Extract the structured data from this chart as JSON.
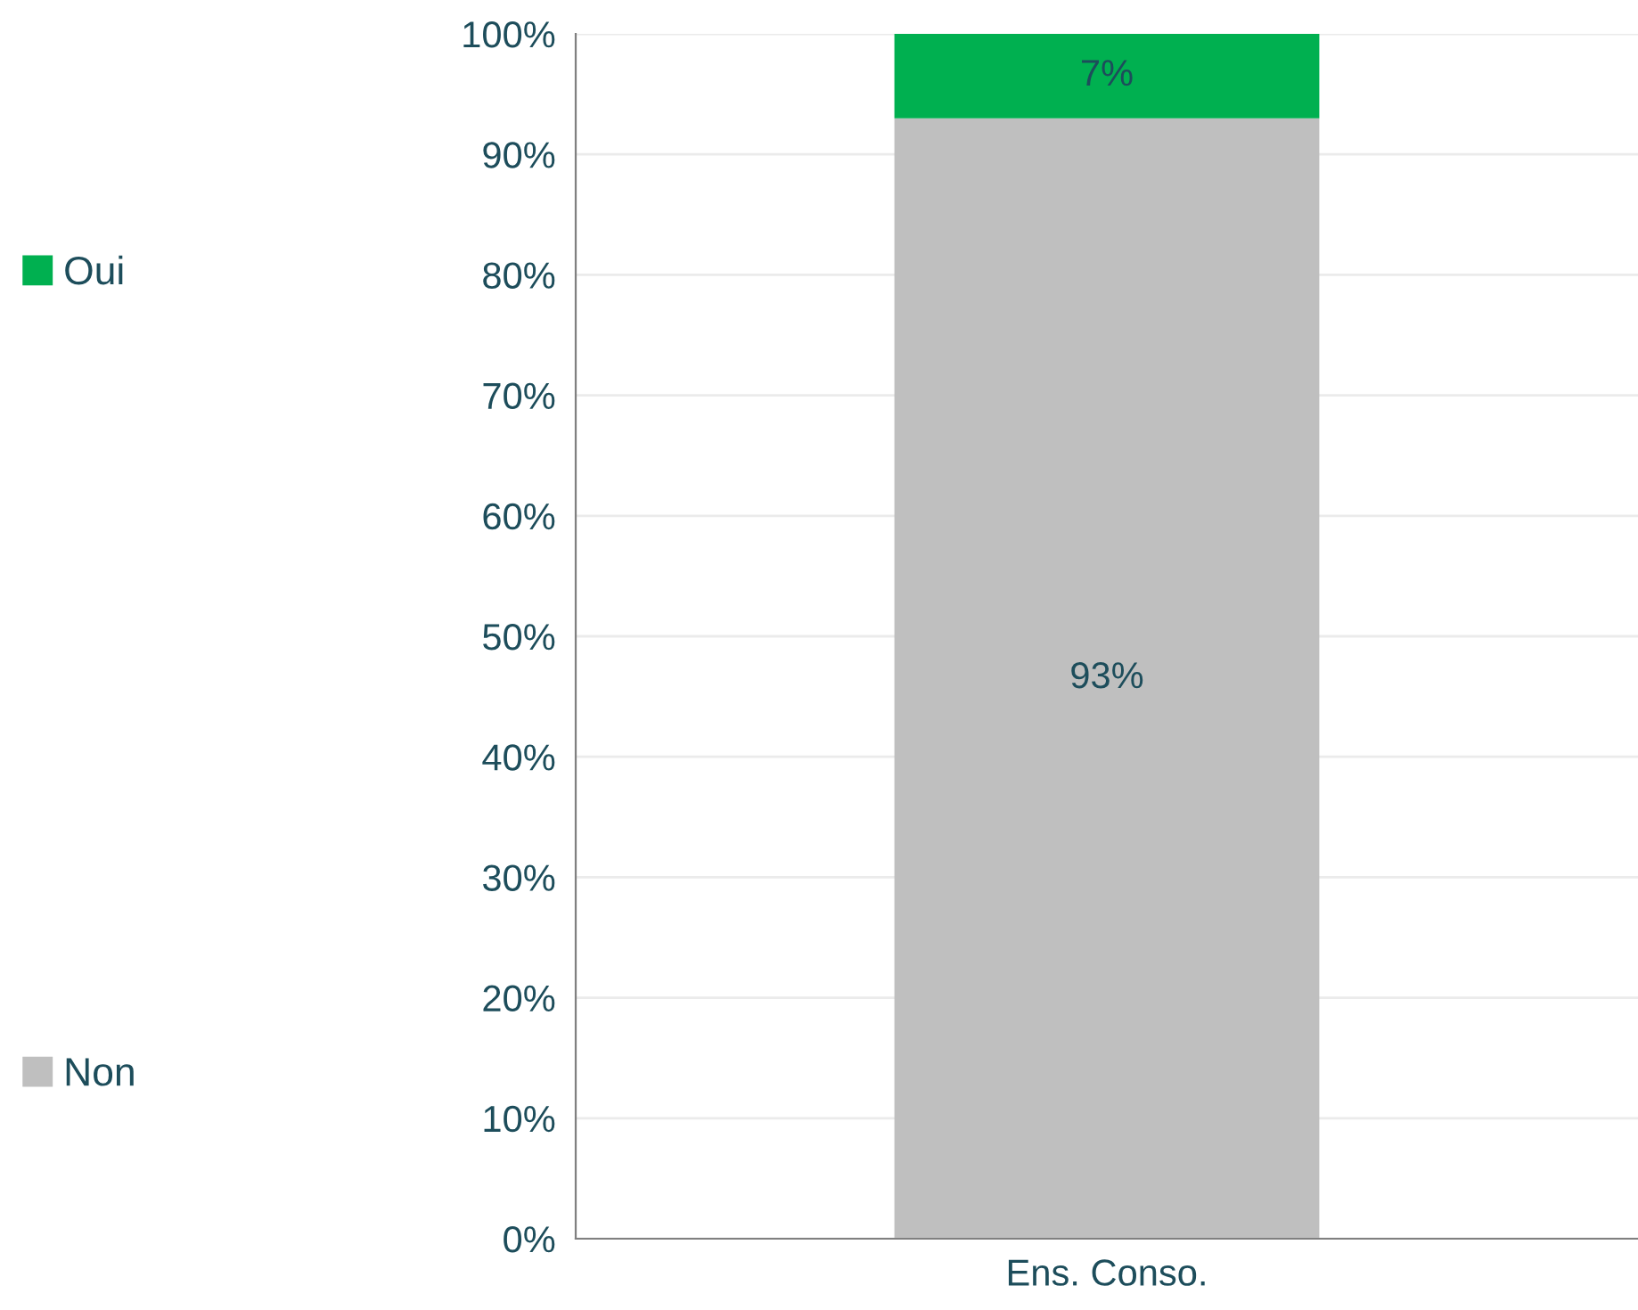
{
  "chart_data": {
    "type": "bar",
    "stacked": true,
    "categories": [
      "Ens. Conso."
    ],
    "series": [
      {
        "name": "Non",
        "color": "#bfbfbf",
        "values": [
          93
        ],
        "value_labels": [
          "93%"
        ]
      },
      {
        "name": "Oui",
        "color": "#00b050",
        "values": [
          7
        ],
        "value_labels": [
          "7%"
        ]
      }
    ],
    "ylim": [
      0,
      100
    ],
    "yticks": [
      {
        "value": 0,
        "label": "0%"
      },
      {
        "value": 10,
        "label": "10%"
      },
      {
        "value": 20,
        "label": "20%"
      },
      {
        "value": 30,
        "label": "30%"
      },
      {
        "value": 40,
        "label": "40%"
      },
      {
        "value": 50,
        "label": "50%"
      },
      {
        "value": 60,
        "label": "60%"
      },
      {
        "value": 70,
        "label": "70%"
      },
      {
        "value": 80,
        "label": "80%"
      },
      {
        "value": 90,
        "label": "90%"
      },
      {
        "value": 100,
        "label": "100%"
      }
    ],
    "grid": "y",
    "legend": "left"
  }
}
